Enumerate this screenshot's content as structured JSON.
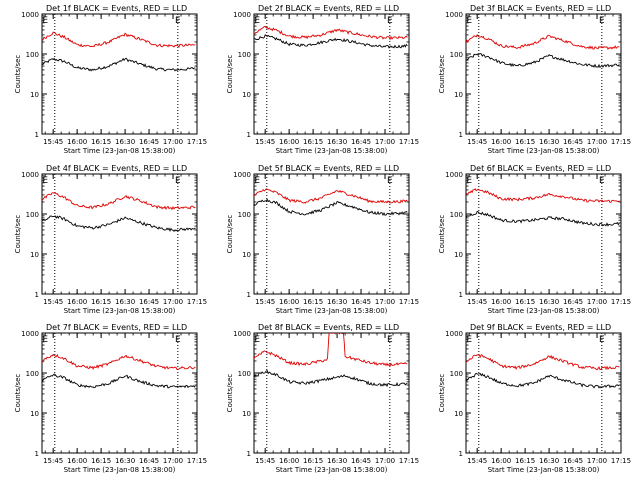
{
  "chart_data": [
    {
      "type": "line",
      "title": "Det 1f BLACK = Events, RED = LLD",
      "xlabel": "Start Time (23-Jan-08 15:38:00)",
      "ylabel": "Counts/sec",
      "ylog": true,
      "ylim": [
        1,
        1000
      ],
      "yticks": [
        "1",
        "10",
        "100",
        "1000"
      ],
      "xticks": [
        "15:45",
        "16:00",
        "16:15",
        "16:30",
        "16:45",
        "17:00",
        "17:15"
      ],
      "markers": [
        {
          "label": "E",
          "x": "15:40"
        },
        {
          "label": "E",
          "x": "17:03"
        }
      ],
      "dotted_lines": [
        "15:46",
        "17:03"
      ],
      "series": [
        {
          "color": "#000000",
          "x": [
            "15:38",
            "15:45",
            "15:52",
            "16:00",
            "16:10",
            "16:20",
            "16:30",
            "16:40",
            "16:50",
            "17:00",
            "17:10",
            "17:14"
          ],
          "y": [
            55,
            75,
            65,
            45,
            40,
            50,
            75,
            55,
            42,
            40,
            42,
            45
          ]
        },
        {
          "color": "#e00000",
          "x": [
            "15:38",
            "15:45",
            "15:52",
            "16:00",
            "16:10",
            "16:20",
            "16:30",
            "16:40",
            "16:50",
            "17:00",
            "17:10",
            "17:14"
          ],
          "y": [
            230,
            340,
            260,
            170,
            155,
            200,
            310,
            230,
            165,
            160,
            165,
            170
          ]
        }
      ]
    },
    {
      "type": "line",
      "title": "Det 2f BLACK = Events, RED = LLD",
      "xlabel": "Start Time (23-Jan-08 15:38:00)",
      "ylabel": "Counts/sec",
      "ylog": true,
      "ylim": [
        1,
        1000
      ],
      "yticks": [
        "1",
        "10",
        "100",
        "1000"
      ],
      "xticks": [
        "15:45",
        "16:00",
        "16:15",
        "16:30",
        "16:45",
        "17:00",
        "17:15"
      ],
      "markers": [
        {
          "label": "E",
          "x": "15:40"
        },
        {
          "label": "E",
          "x": "17:03"
        }
      ],
      "dotted_lines": [
        "15:46",
        "17:03"
      ],
      "series": [
        {
          "color": "#000000",
          "x": [
            "15:38",
            "15:45",
            "15:52",
            "16:00",
            "16:10",
            "16:20",
            "16:30",
            "16:40",
            "16:50",
            "17:00",
            "17:10",
            "17:14"
          ],
          "y": [
            230,
            280,
            240,
            175,
            165,
            195,
            240,
            200,
            165,
            150,
            155,
            160
          ]
        },
        {
          "color": "#e00000",
          "x": [
            "15:38",
            "15:45",
            "15:52",
            "16:00",
            "16:10",
            "16:20",
            "16:30",
            "16:40",
            "16:50",
            "17:00",
            "17:10",
            "17:14"
          ],
          "y": [
            330,
            470,
            390,
            280,
            260,
            300,
            400,
            330,
            275,
            250,
            255,
            260
          ]
        }
      ]
    },
    {
      "type": "line",
      "title": "Det 3f BLACK = Events, RED = LLD",
      "xlabel": "Start Time (23-Jan-08 15:38:00)",
      "ylabel": "Counts/sec",
      "ylog": true,
      "ylim": [
        1,
        1000
      ],
      "yticks": [
        "1",
        "10",
        "100",
        "1000"
      ],
      "xticks": [
        "15:45",
        "16:00",
        "16:15",
        "16:30",
        "16:45",
        "17:00",
        "17:15"
      ],
      "markers": [
        {
          "label": "E",
          "x": "15:40"
        },
        {
          "label": "E",
          "x": "17:03"
        }
      ],
      "dotted_lines": [
        "15:46",
        "17:03"
      ],
      "series": [
        {
          "color": "#000000",
          "x": [
            "15:38",
            "15:45",
            "15:52",
            "16:00",
            "16:10",
            "16:20",
            "16:30",
            "16:40",
            "16:50",
            "17:00",
            "17:10",
            "17:14"
          ],
          "y": [
            70,
            100,
            85,
            60,
            50,
            60,
            90,
            70,
            55,
            50,
            52,
            55
          ]
        },
        {
          "color": "#e00000",
          "x": [
            "15:38",
            "15:45",
            "15:52",
            "16:00",
            "16:10",
            "16:20",
            "16:30",
            "16:40",
            "16:50",
            "17:00",
            "17:10",
            "17:14"
          ],
          "y": [
            200,
            300,
            240,
            160,
            145,
            180,
            280,
            210,
            155,
            140,
            145,
            150
          ]
        }
      ]
    },
    {
      "type": "line",
      "title": "Det 4f BLACK = Events, RED = LLD",
      "xlabel": "Start Time (23-Jan-08 15:38:00)",
      "ylabel": "Counts/sec",
      "ylog": true,
      "ylim": [
        1,
        1000
      ],
      "yticks": [
        "1",
        "10",
        "100",
        "1000"
      ],
      "xticks": [
        "15:45",
        "16:00",
        "16:15",
        "16:30",
        "16:45",
        "17:00",
        "17:15"
      ],
      "markers": [
        {
          "label": "E",
          "x": "15:40"
        },
        {
          "label": "E",
          "x": "17:03"
        }
      ],
      "dotted_lines": [
        "15:46",
        "17:03"
      ],
      "series": [
        {
          "color": "#000000",
          "x": [
            "15:38",
            "15:45",
            "15:52",
            "16:00",
            "16:10",
            "16:20",
            "16:30",
            "16:40",
            "16:50",
            "17:00",
            "17:10",
            "17:14"
          ],
          "y": [
            65,
            90,
            75,
            50,
            45,
            55,
            80,
            60,
            45,
            40,
            42,
            45
          ]
        },
        {
          "color": "#e00000",
          "x": [
            "15:38",
            "15:45",
            "15:52",
            "16:00",
            "16:10",
            "16:20",
            "16:30",
            "16:40",
            "16:50",
            "17:00",
            "17:10",
            "17:14"
          ],
          "y": [
            230,
            340,
            260,
            160,
            145,
            180,
            280,
            210,
            150,
            140,
            145,
            150
          ]
        }
      ]
    },
    {
      "type": "line",
      "title": "Det 5f BLACK = Events, RED = LLD",
      "xlabel": "Start Time (23-Jan-08 15:38:00)",
      "ylabel": "Counts/sec",
      "ylog": true,
      "ylim": [
        1,
        1000
      ],
      "yticks": [
        "1",
        "10",
        "100",
        "1000"
      ],
      "xticks": [
        "15:45",
        "16:00",
        "16:15",
        "16:30",
        "16:45",
        "17:00",
        "17:15"
      ],
      "markers": [
        {
          "label": "E",
          "x": "15:40"
        },
        {
          "label": "E",
          "x": "17:03"
        }
      ],
      "dotted_lines": [
        "15:46",
        "17:03"
      ],
      "series": [
        {
          "color": "#000000",
          "x": [
            "15:38",
            "15:45",
            "15:52",
            "16:00",
            "16:10",
            "16:20",
            "16:30",
            "16:40",
            "16:50",
            "17:00",
            "17:10",
            "17:14"
          ],
          "y": [
            170,
            230,
            190,
            115,
            100,
            125,
            190,
            150,
            110,
            100,
            105,
            110
          ]
        },
        {
          "color": "#e00000",
          "x": [
            "15:38",
            "15:45",
            "15:52",
            "16:00",
            "16:10",
            "16:20",
            "16:30",
            "16:40",
            "16:50",
            "17:00",
            "17:10",
            "17:14"
          ],
          "y": [
            290,
            420,
            340,
            220,
            200,
            250,
            380,
            290,
            210,
            200,
            205,
            210
          ]
        }
      ]
    },
    {
      "type": "line",
      "title": "Det 6f BLACK = Events, RED = LLD",
      "xlabel": "Start Time (23-Jan-08 15:38:00)",
      "ylabel": "Counts/sec",
      "ylog": true,
      "ylim": [
        1,
        1000
      ],
      "yticks": [
        "1",
        "10",
        "100",
        "1000"
      ],
      "xticks": [
        "15:45",
        "16:00",
        "16:15",
        "16:30",
        "16:45",
        "17:00",
        "17:15"
      ],
      "markers": [
        {
          "label": "E",
          "x": "15:40"
        },
        {
          "label": "E",
          "x": "17:03"
        }
      ],
      "dotted_lines": [
        "15:46",
        "17:03"
      ],
      "series": [
        {
          "color": "#000000",
          "x": [
            "15:38",
            "15:45",
            "15:52",
            "16:00",
            "16:10",
            "16:20",
            "16:30",
            "16:40",
            "16:50",
            "17:00",
            "17:10",
            "17:14"
          ],
          "y": [
            85,
            110,
            95,
            70,
            65,
            70,
            80,
            75,
            60,
            55,
            55,
            58
          ]
        },
        {
          "color": "#e00000",
          "x": [
            "15:38",
            "15:45",
            "15:52",
            "16:00",
            "16:10",
            "16:20",
            "16:30",
            "16:40",
            "16:50",
            "17:00",
            "17:10",
            "17:14"
          ],
          "y": [
            300,
            420,
            340,
            240,
            230,
            250,
            310,
            270,
            220,
            210,
            210,
            215
          ]
        }
      ]
    },
    {
      "type": "line",
      "title": "Det 7f BLACK = Events, RED = LLD",
      "xlabel": "Start Time (23-Jan-08 15:38:00)",
      "ylabel": "Counts/sec",
      "ylog": true,
      "ylim": [
        1,
        1000
      ],
      "yticks": [
        "1",
        "10",
        "100",
        "1000"
      ],
      "xticks": [
        "15:45",
        "16:00",
        "16:15",
        "16:30",
        "16:45",
        "17:00",
        "17:15"
      ],
      "markers": [
        {
          "label": "E",
          "x": "15:40"
        },
        {
          "label": "E",
          "x": "17:03"
        }
      ],
      "dotted_lines": [
        "15:46",
        "17:03"
      ],
      "series": [
        {
          "color": "#000000",
          "x": [
            "15:38",
            "15:45",
            "15:52",
            "16:00",
            "16:10",
            "16:20",
            "16:30",
            "16:40",
            "16:50",
            "17:00",
            "17:10",
            "17:14"
          ],
          "y": [
            65,
            90,
            75,
            50,
            45,
            55,
            85,
            60,
            48,
            45,
            46,
            48
          ]
        },
        {
          "color": "#e00000",
          "x": [
            "15:38",
            "15:45",
            "15:52",
            "16:00",
            "16:10",
            "16:20",
            "16:30",
            "16:40",
            "16:50",
            "17:00",
            "17:10",
            "17:14"
          ],
          "y": [
            200,
            290,
            230,
            150,
            135,
            170,
            270,
            200,
            145,
            130,
            135,
            140
          ]
        }
      ]
    },
    {
      "type": "line",
      "title": "Det 8f BLACK = Events, RED = LLD",
      "xlabel": "Start Time (23-Jan-08 15:38:00)",
      "ylabel": "Counts/sec",
      "ylog": true,
      "ylim": [
        1,
        1000
      ],
      "yticks": [
        "1",
        "10",
        "100",
        "1000"
      ],
      "xticks": [
        "15:45",
        "16:00",
        "16:15",
        "16:30",
        "16:45",
        "17:00",
        "17:15"
      ],
      "markers": [
        {
          "label": "E",
          "x": "15:40"
        },
        {
          "label": "E",
          "x": "17:03"
        }
      ],
      "dotted_lines": [
        "15:46",
        "17:03"
      ],
      "series": [
        {
          "color": "#000000",
          "x": [
            "15:38",
            "15:45",
            "15:52",
            "16:00",
            "16:10",
            "16:20",
            "16:24",
            "16:35",
            "16:40",
            "16:50",
            "17:00",
            "17:10",
            "17:14"
          ],
          "y": [
            80,
            110,
            90,
            60,
            55,
            65,
            70,
            85,
            75,
            55,
            50,
            52,
            55
          ]
        },
        {
          "color": "#e00000",
          "x": [
            "15:38",
            "15:45",
            "15:52",
            "16:00",
            "16:10",
            "16:20",
            "16:24",
            "16:25",
            "16:34",
            "16:35",
            "16:40",
            "16:50",
            "17:00",
            "17:10",
            "17:14"
          ],
          "y": [
            230,
            350,
            270,
            180,
            165,
            200,
            220,
            1000,
            1000,
            260,
            230,
            180,
            160,
            165,
            170
          ]
        }
      ]
    },
    {
      "type": "line",
      "title": "Det 9f BLACK = Events, RED = LLD",
      "xlabel": "Start Time (23-Jan-08 15:38:00)",
      "ylabel": "Counts/sec",
      "ylog": true,
      "ylim": [
        1,
        1000
      ],
      "yticks": [
        "1",
        "10",
        "100",
        "1000"
      ],
      "xticks": [
        "15:45",
        "16:00",
        "16:15",
        "16:30",
        "16:45",
        "17:00",
        "17:15"
      ],
      "markers": [
        {
          "label": "E",
          "x": "15:40"
        },
        {
          "label": "E",
          "x": "17:03"
        }
      ],
      "dotted_lines": [
        "15:46",
        "17:03"
      ],
      "series": [
        {
          "color": "#000000",
          "x": [
            "15:38",
            "15:45",
            "15:52",
            "16:00",
            "16:10",
            "16:20",
            "16:30",
            "16:40",
            "16:50",
            "17:00",
            "17:10",
            "17:14"
          ],
          "y": [
            65,
            95,
            80,
            55,
            48,
            55,
            85,
            65,
            50,
            45,
            47,
            50
          ]
        },
        {
          "color": "#e00000",
          "x": [
            "15:38",
            "15:45",
            "15:52",
            "16:00",
            "16:10",
            "16:20",
            "16:30",
            "16:40",
            "16:50",
            "17:00",
            "17:10",
            "17:14"
          ],
          "y": [
            190,
            290,
            230,
            150,
            135,
            165,
            260,
            190,
            140,
            130,
            135,
            140
          ]
        }
      ]
    }
  ]
}
